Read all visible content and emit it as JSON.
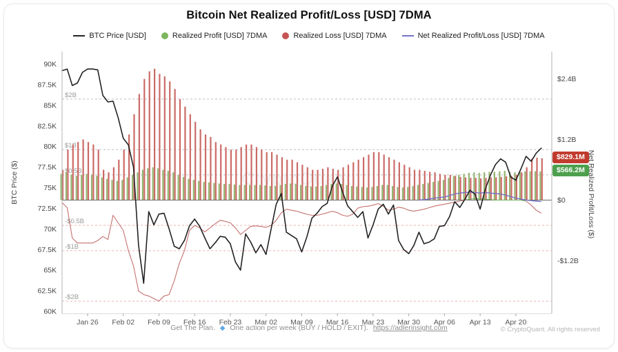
{
  "title": "Bitcoin Net Realized Profit/Loss [USD] 7DMA",
  "legend": {
    "items": [
      {
        "label": "BTC Price [USD]",
        "swatch": "black-line"
      },
      {
        "label": "Realized Profit [USD] 7DMA",
        "swatch": "green-dot"
      },
      {
        "label": "Realized Loss [USD] 7DMA",
        "swatch": "red-dot"
      },
      {
        "label": "Net Realized Profit/Loss [USD] 7DMA",
        "swatch": "purple-line"
      }
    ]
  },
  "badges": {
    "loss": "$829.1M",
    "profit": "$566.2M"
  },
  "footer": {
    "pre": "Get The Plan.",
    "icon": "◆",
    "mid": "One action per week (BUY / HOLD / EXIT).",
    "link": "https://adlerinsight.com"
  },
  "copyright": "© CryptoQuant. All rights reserved",
  "watermark": "CryptoQuant",
  "colors": {
    "btc_line": "#222222",
    "profit_bar": "#94b571",
    "loss_bar": "#cb6a66",
    "net_neg": "#c4706e",
    "net_pos": "#6fae5c",
    "net_7dma": "#7672c4",
    "badge_loss_bg": "#c13c2e",
    "badge_profit_bg": "#4da04d",
    "guide_pos": "#bdbdbd",
    "guide_neg": "#e6b4b0",
    "axis_line": "#b3b3b3",
    "zero_line": "#6b6b6b"
  },
  "axes": {
    "left": {
      "label": "BTC Price ($)",
      "ticks": [
        {
          "label": "90K",
          "value": 90
        },
        {
          "label": "87.5K",
          "value": 87.5
        },
        {
          "label": "85K",
          "value": 85
        },
        {
          "label": "82.5K",
          "value": 82.5
        },
        {
          "label": "80K",
          "value": 80
        },
        {
          "label": "77.5K",
          "value": 77.5
        },
        {
          "label": "75K",
          "value": 75
        },
        {
          "label": "72.5K",
          "value": 72.5
        },
        {
          "label": "70K",
          "value": 70
        },
        {
          "label": "67.5K",
          "value": 67.5
        },
        {
          "label": "65K",
          "value": 65
        },
        {
          "label": "62.5K",
          "value": 62.5
        },
        {
          "label": "60K",
          "value": 60
        }
      ]
    },
    "right": {
      "label": "Net Realized Profit/Loss ($)",
      "ticks": [
        {
          "label": "$2.4B",
          "value": 2.4
        },
        {
          "label": "$1.2B",
          "value": 1.2
        },
        {
          "label": "$0",
          "value": 0
        },
        {
          "label": "-$1.2B",
          "value": -1.2
        }
      ]
    },
    "x": {
      "ticks": [
        {
          "label": "Jan 26",
          "day": 5
        },
        {
          "label": "Feb 02",
          "day": 12
        },
        {
          "label": "Feb 09",
          "day": 19
        },
        {
          "label": "Feb 16",
          "day": 26
        },
        {
          "label": "Feb 23",
          "day": 33
        },
        {
          "label": "Mar 02",
          "day": 40
        },
        {
          "label": "Mar 09",
          "day": 47
        },
        {
          "label": "Mar 16",
          "day": 54
        },
        {
          "label": "Mar 23",
          "day": 61
        },
        {
          "label": "Mar 30",
          "day": 68
        },
        {
          "label": "Apr 06",
          "day": 75
        },
        {
          "label": "Apr 13",
          "day": 82
        },
        {
          "label": "Apr 20",
          "day": 89
        }
      ]
    }
  },
  "guides": [
    {
      "label": "$2B",
      "value": 2
    },
    {
      "label": "$1B",
      "value": 1
    },
    {
      "label": "$0.5B",
      "value": 0.5
    },
    {
      "label": "-$0.5B",
      "value": -0.5
    },
    {
      "label": "-$1B",
      "value": -1
    },
    {
      "label": "-$2B",
      "value": -2
    }
  ],
  "chart_data": {
    "type": "combo",
    "title": "Bitcoin Net Realized Profit/Loss [USD] 7DMA",
    "x_label": "",
    "left_y_label": "BTC Price ($)",
    "right_y_label": "Net Realized Profit/Loss ($)",
    "left_ylim_thousand_usd": [
      60,
      90
    ],
    "right_ylim_billion_usd": [
      -2.3,
      2.95
    ],
    "grid": "dashed horizontal guides at 2, 1, 0.5, -0.5, -1, -2 billion USD",
    "legend_position": "top-center",
    "dates": [
      "Jan 21",
      "Jan 22",
      "Jan 23",
      "Jan 24",
      "Jan 25",
      "Jan 26",
      "Jan 27",
      "Jan 28",
      "Jan 29",
      "Jan 30",
      "Jan 31",
      "Feb 01",
      "Feb 02",
      "Feb 03",
      "Feb 04",
      "Feb 05",
      "Feb 06",
      "Feb 07",
      "Feb 08",
      "Feb 09",
      "Feb 10",
      "Feb 11",
      "Feb 12",
      "Feb 13",
      "Feb 14",
      "Feb 15",
      "Feb 16",
      "Feb 17",
      "Feb 18",
      "Feb 19",
      "Feb 20",
      "Feb 21",
      "Feb 22",
      "Feb 23",
      "Feb 24",
      "Feb 25",
      "Feb 26",
      "Feb 27",
      "Feb 28",
      "Mar 01",
      "Mar 02",
      "Mar 03",
      "Mar 04",
      "Mar 05",
      "Mar 06",
      "Mar 07",
      "Mar 08",
      "Mar 09",
      "Mar 10",
      "Mar 11",
      "Mar 12",
      "Mar 13",
      "Mar 14",
      "Mar 15",
      "Mar 16",
      "Mar 17",
      "Mar 18",
      "Mar 19",
      "Mar 20",
      "Mar 21",
      "Mar 22",
      "Mar 23",
      "Mar 24",
      "Mar 25",
      "Mar 26",
      "Mar 27",
      "Mar 28",
      "Mar 29",
      "Mar 30",
      "Mar 31",
      "Apr 01",
      "Apr 02",
      "Apr 03",
      "Apr 04",
      "Apr 05",
      "Apr 06",
      "Apr 07",
      "Apr 08",
      "Apr 09",
      "Apr 10",
      "Apr 11",
      "Apr 12",
      "Apr 13",
      "Apr 14",
      "Apr 15",
      "Apr 16",
      "Apr 17",
      "Apr 18",
      "Apr 19",
      "Apr 20",
      "Apr 21",
      "Apr 22",
      "Apr 23",
      "Apr 24",
      "Apr 25"
    ],
    "series": {
      "btc_price_thousand_usd": {
        "kind": "line",
        "values": [
          89.2,
          89.4,
          87.4,
          87.7,
          89.0,
          89.4,
          89.4,
          89.3,
          86.2,
          85.4,
          85.5,
          83.5,
          81.0,
          80.2,
          77.5,
          68.0,
          63.4,
          72.1,
          70.5,
          71.8,
          71.9,
          70.0,
          67.9,
          67.6,
          68.6,
          70.4,
          71.2,
          70.3,
          68.9,
          67.6,
          68.3,
          69.1,
          69.0,
          68.2,
          66.0,
          65.0,
          69.4,
          68.4,
          67.1,
          68.1,
          66.9,
          70.0,
          73.0,
          74.3,
          69.6,
          69.2,
          68.8,
          67.2,
          69.0,
          71.3,
          71.9,
          72.7,
          73.1,
          75.2,
          76.3,
          74.5,
          72.8,
          72.1,
          71.4,
          72.1,
          68.9,
          70.5,
          72.4,
          73.0,
          71.8,
          72.9,
          68.6,
          67.5,
          67.0,
          68.0,
          69.6,
          68.2,
          68.4,
          68.8,
          70.3,
          70.4,
          71.5,
          73.3,
          72.6,
          73.6,
          74.7,
          74.2,
          72.4,
          74.8,
          76.5,
          77.8,
          78.5,
          78.1,
          76.3,
          75.9,
          77.3,
          78.8,
          78.2,
          79.2,
          79.8
        ]
      },
      "realized_profit_billion_usd": {
        "kind": "bar",
        "values": [
          0.52,
          0.55,
          0.5,
          0.48,
          0.5,
          0.52,
          0.5,
          0.48,
          0.45,
          0.42,
          0.4,
          0.38,
          0.4,
          0.45,
          0.5,
          0.55,
          0.6,
          0.63,
          0.65,
          0.63,
          0.6,
          0.58,
          0.55,
          0.5,
          0.46,
          0.42,
          0.4,
          0.38,
          0.36,
          0.35,
          0.34,
          0.33,
          0.32,
          0.32,
          0.31,
          0.3,
          0.3,
          0.3,
          0.3,
          0.3,
          0.29,
          0.28,
          0.28,
          0.3,
          0.32,
          0.33,
          0.32,
          0.3,
          0.28,
          0.27,
          0.27,
          0.28,
          0.3,
          0.32,
          0.33,
          0.32,
          0.3,
          0.28,
          0.27,
          0.26,
          0.25,
          0.26,
          0.28,
          0.3,
          0.3,
          0.28,
          0.26,
          0.25,
          0.26,
          0.28,
          0.3,
          0.32,
          0.34,
          0.36,
          0.38,
          0.4,
          0.44,
          0.48,
          0.5,
          0.52,
          0.54,
          0.55,
          0.54,
          0.55,
          0.56,
          0.56,
          0.57,
          0.58,
          0.56,
          0.55,
          0.56,
          0.57,
          0.57,
          0.57,
          0.566
        ]
      },
      "realized_loss_billion_usd": {
        "kind": "bar",
        "values": [
          0.6,
          1.0,
          1.1,
          1.15,
          1.2,
          1.15,
          1.1,
          1.0,
          0.6,
          0.55,
          0.65,
          0.8,
          1.0,
          1.3,
          1.7,
          2.1,
          2.4,
          2.55,
          2.6,
          2.5,
          2.45,
          2.35,
          2.2,
          2.0,
          1.85,
          1.7,
          1.55,
          1.4,
          1.3,
          1.25,
          1.15,
          1.1,
          1.05,
          1.0,
          1.0,
          1.05,
          1.1,
          1.1,
          1.05,
          1.0,
          0.95,
          0.95,
          0.9,
          0.85,
          0.8,
          0.8,
          0.75,
          0.7,
          0.65,
          0.6,
          0.6,
          0.62,
          0.65,
          0.62,
          0.6,
          0.65,
          0.7,
          0.75,
          0.8,
          0.85,
          0.9,
          0.95,
          0.95,
          0.9,
          0.85,
          0.8,
          0.75,
          0.7,
          0.65,
          0.6,
          0.6,
          0.58,
          0.56,
          0.55,
          0.52,
          0.5,
          0.5,
          0.48,
          0.46,
          0.45,
          0.44,
          0.44,
          0.43,
          0.44,
          0.45,
          0.45,
          0.46,
          0.47,
          0.48,
          0.5,
          0.55,
          0.65,
          0.82,
          0.84,
          0.829
        ]
      },
      "net_realized_billion_usd": {
        "kind": "line-signed",
        "values": [
          -0.05,
          -0.15,
          -0.75,
          -0.85,
          -0.85,
          -0.85,
          -0.85,
          -0.8,
          -0.72,
          -0.78,
          -0.3,
          -0.45,
          -0.6,
          -1.0,
          -1.3,
          -1.8,
          -1.87,
          -1.9,
          -1.95,
          -2.0,
          -1.9,
          -1.87,
          -1.6,
          -1.25,
          -1.0,
          -0.6,
          -0.5,
          -0.55,
          -0.63,
          -0.55,
          -0.47,
          -0.4,
          -0.42,
          -0.45,
          -0.55,
          -0.68,
          -0.6,
          -0.52,
          -0.51,
          -0.52,
          -0.54,
          -0.5,
          -0.4,
          -0.25,
          -0.18,
          -0.2,
          -0.22,
          -0.25,
          -0.28,
          -0.3,
          -0.3,
          -0.28,
          -0.25,
          -0.22,
          -0.25,
          -0.3,
          -0.32,
          -0.28,
          -0.16,
          -0.13,
          -0.12,
          -0.1,
          -0.07,
          -0.12,
          -0.2,
          -0.18,
          -0.14,
          -0.16,
          -0.2,
          -0.22,
          -0.2,
          -0.18,
          -0.15,
          -0.12,
          -0.1,
          -0.08,
          -0.06,
          -0.04,
          -0.02,
          0.0,
          0.02,
          0.03,
          0.02,
          0.02,
          0.01,
          0.0,
          0.0,
          0.0,
          0.0,
          0.0,
          0.0,
          -0.02,
          -0.1,
          -0.2,
          -0.26
        ]
      },
      "net_realized_7dma_billion_usd": {
        "kind": "line",
        "start_index": 70,
        "values": [
          0.0,
          0.01,
          0.02,
          0.04,
          0.05,
          0.06,
          0.09,
          0.12,
          0.14,
          0.15,
          0.16,
          0.15,
          0.14,
          0.15,
          0.14,
          0.13,
          0.12,
          0.1,
          0.07,
          0.04,
          0.02,
          0.0,
          -0.01,
          -0.02,
          -0.03
        ]
      },
      "last_values": {
        "realized_loss": "$829.1M",
        "realized_profit": "$566.2M"
      }
    }
  }
}
